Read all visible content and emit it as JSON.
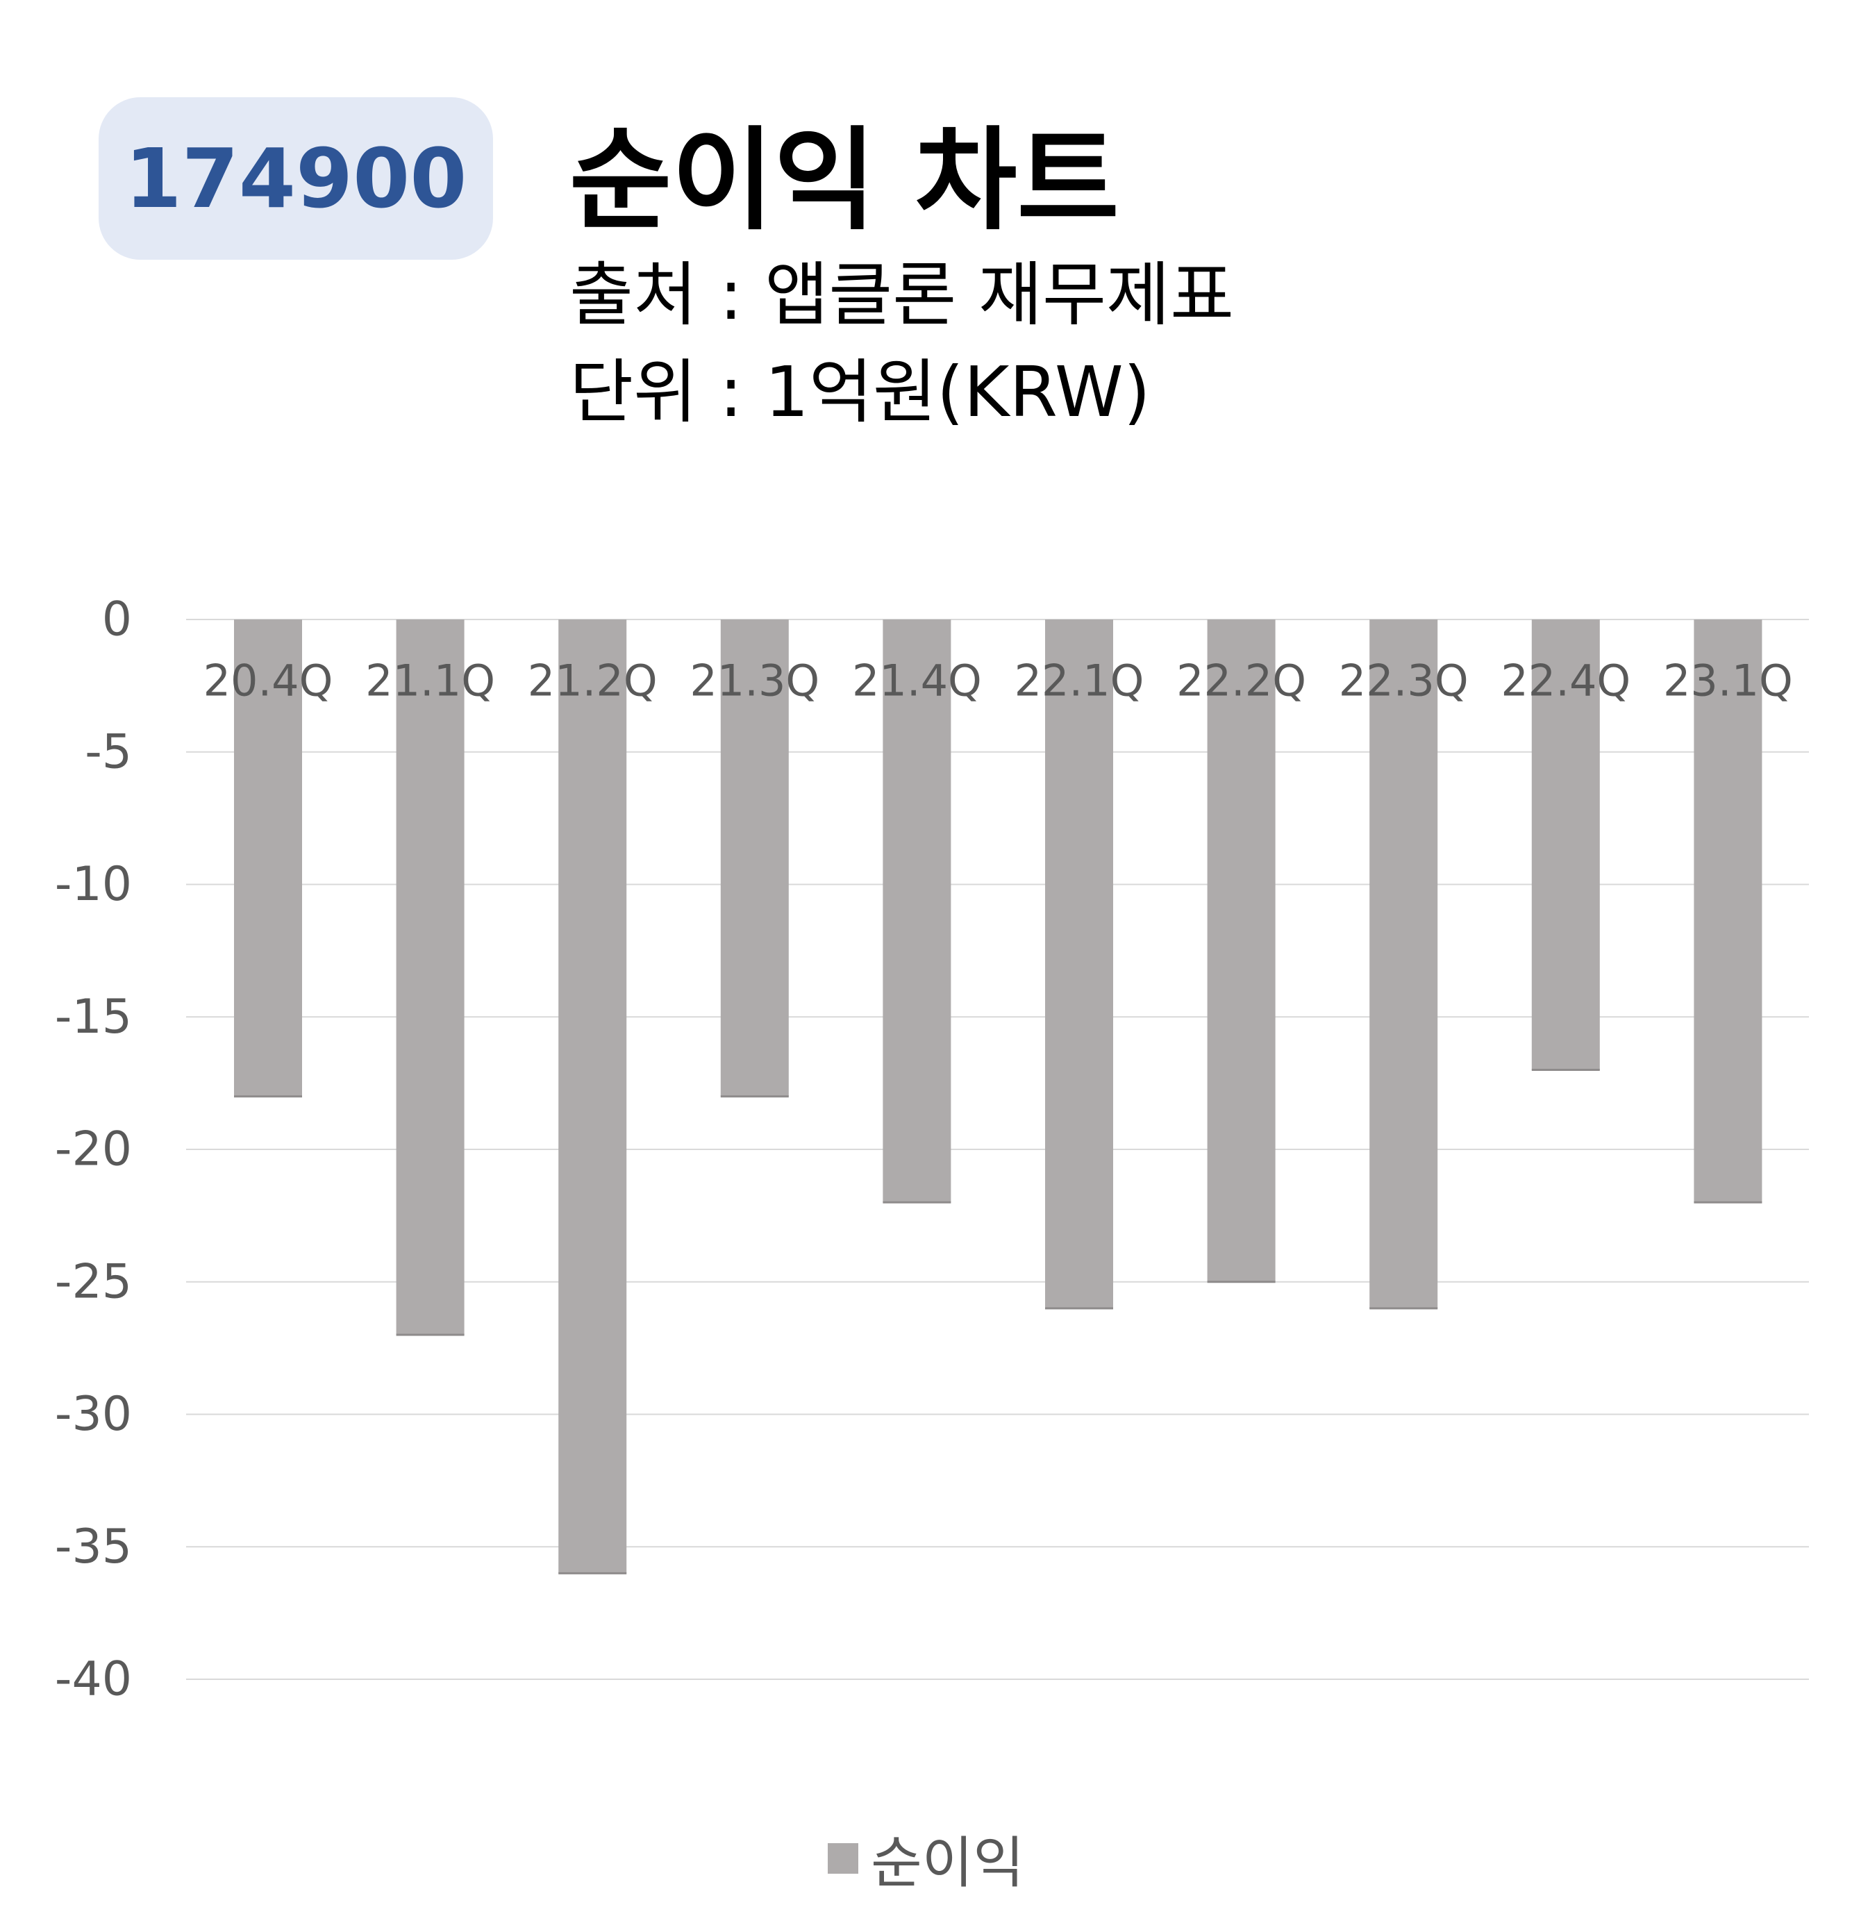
{
  "badge": {
    "code": "174900"
  },
  "header": {
    "title": "순이익 차트",
    "source": "출처 : 앱클론 재무제표",
    "unit": "단위 : 1억원(KRW)"
  },
  "colors": {
    "bar": "#aeabab",
    "badge_bg": "#e3e9f5",
    "badge_text": "#2e5596",
    "grid": "#d9d9d9",
    "tick_text": "#595959"
  },
  "chart_data": {
    "type": "bar",
    "categories": [
      "20.4Q",
      "21.1Q",
      "21.2Q",
      "21.3Q",
      "21.4Q",
      "22.1Q",
      "22.2Q",
      "22.3Q",
      "22.4Q",
      "23.1Q"
    ],
    "series": [
      {
        "name": "순이익",
        "values": [
          -18,
          -27,
          -36,
          -18,
          -22,
          -26,
          -25,
          -26,
          -17,
          -22
        ]
      }
    ],
    "ylim": [
      -40,
      0
    ],
    "yticks": [
      0,
      -5,
      -10,
      -15,
      -20,
      -25,
      -30,
      -35,
      -40
    ],
    "grid": true,
    "legend": "bottom",
    "xlabel": "",
    "ylabel": ""
  }
}
